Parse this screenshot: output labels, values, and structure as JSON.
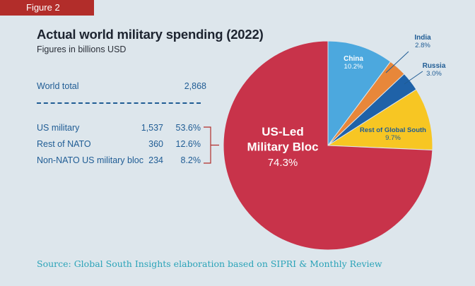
{
  "figure_tag": "Figure 2",
  "title": "Actual world military spending (2022)",
  "subtitle": "Figures in billions USD",
  "world_total": {
    "label": "World total",
    "value": "2,868"
  },
  "breakdown": [
    {
      "label": "US military",
      "value": "1,537",
      "percent": "53.6%"
    },
    {
      "label": "Rest of NATO",
      "value": "360",
      "percent": "12.6%"
    },
    {
      "label": "Non-NATO US military bloc",
      "value": "234",
      "percent": "8.2%"
    }
  ],
  "source": "Source: Global South Insights elaboration based on SIPRI & Monthly Review",
  "chart_data": {
    "type": "pie",
    "title": "Actual world military spending (2022)",
    "start_angle_deg": 0,
    "direction": "clockwise",
    "slices": [
      {
        "label": "China",
        "value": 10.2,
        "display": "10.2%",
        "color": "#4ca8de",
        "label_color": "#ffffff"
      },
      {
        "label": "India",
        "value": 2.8,
        "display": "2.8%",
        "color": "#e8873a",
        "label_color": "#1f5c94"
      },
      {
        "label": "Russia",
        "value": 3.0,
        "display": "3.0%",
        "color": "#1f62a8",
        "label_color": "#1f5c94"
      },
      {
        "label": "Rest of Global South",
        "value": 9.7,
        "display": "9.7%",
        "color": "#f7c623",
        "label_color": "#1f5c94"
      },
      {
        "label": "US-Led\nMilitary Bloc",
        "value": 74.3,
        "display": "74.3%",
        "color": "#c8334a",
        "label_color": "#ffffff"
      }
    ]
  }
}
